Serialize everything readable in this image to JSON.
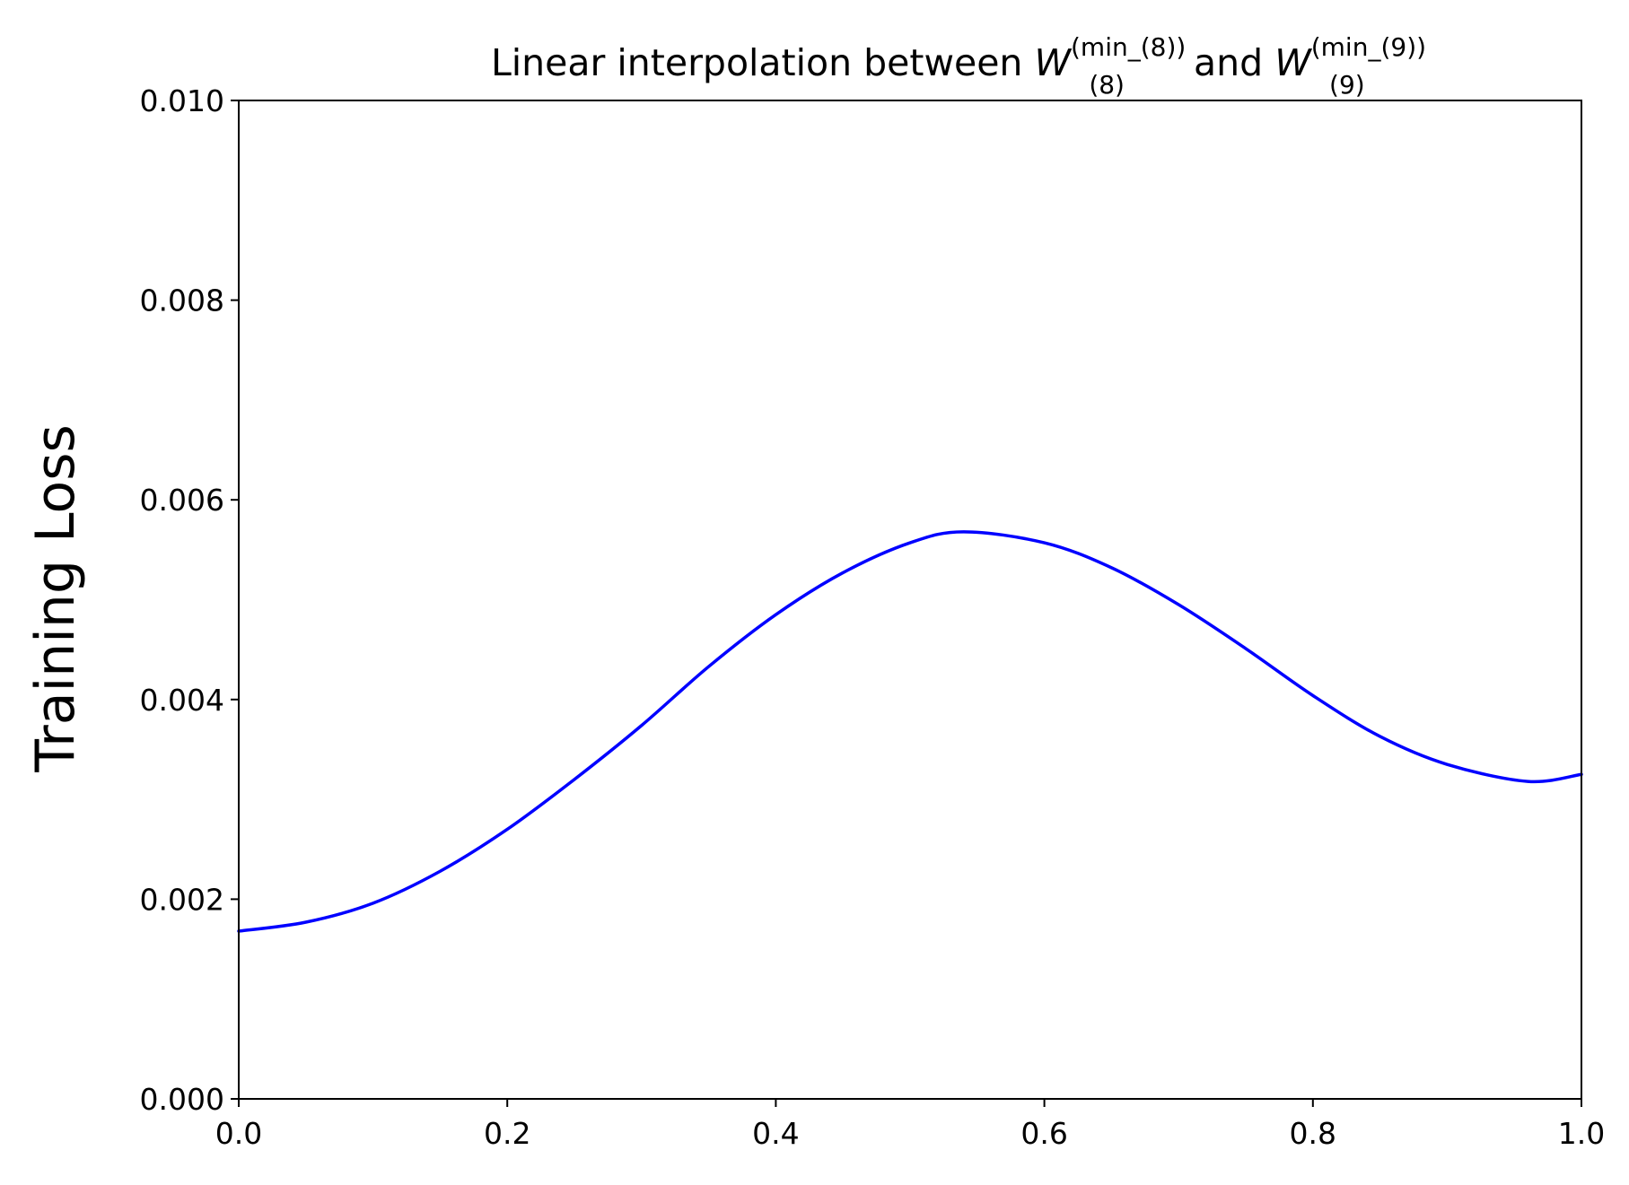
{
  "chart_data": {
    "type": "line",
    "title": {
      "prefix": "Linear interpolation between ",
      "left_symbol": "W",
      "left_subscript": "(8)",
      "left_superscript": "(min_(8))",
      "middle": " and ",
      "right_symbol": "W",
      "right_subscript": "(9)",
      "right_superscript": "(min_(9))"
    },
    "xlabel": "",
    "ylabel": "Training Loss",
    "xlim": [
      0.0,
      1.0
    ],
    "ylim": [
      0.0,
      0.01
    ],
    "x_ticks": [
      "0.0",
      "0.2",
      "0.4",
      "0.6",
      "0.8",
      "1.0"
    ],
    "y_ticks": [
      "0.000",
      "0.002",
      "0.004",
      "0.006",
      "0.008",
      "0.010"
    ],
    "grid": false,
    "series": [
      {
        "color": "#0000ff",
        "x": [
          0.0,
          0.05,
          0.1,
          0.15,
          0.2,
          0.25,
          0.3,
          0.35,
          0.4,
          0.45,
          0.5,
          0.54,
          0.6,
          0.65,
          0.7,
          0.75,
          0.8,
          0.85,
          0.9,
          0.96,
          1.0
        ],
        "y": [
          0.00168,
          0.00177,
          0.00196,
          0.00228,
          0.0027,
          0.0032,
          0.00374,
          0.00433,
          0.00485,
          0.00527,
          0.00557,
          0.00568,
          0.00557,
          0.00532,
          0.00495,
          0.00451,
          0.00404,
          0.00363,
          0.00335,
          0.00318,
          0.00325
        ]
      }
    ]
  }
}
